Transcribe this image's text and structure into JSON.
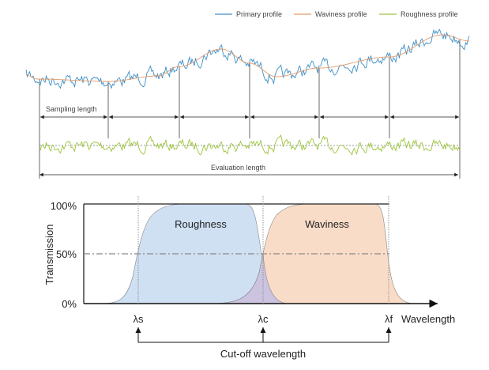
{
  "legend": [
    {
      "label": "Primary profile",
      "color": "#3d8fc6"
    },
    {
      "label": "Waviness profile",
      "color": "#e59a6b"
    },
    {
      "label": "Roughness profile",
      "color": "#9cc43c"
    }
  ],
  "profile_labels": {
    "sampling_length": "Sampling length",
    "evaluation_length": "Evaluation length"
  },
  "filter_chart": {
    "y_axis_label": "Transmission",
    "y_ticks": [
      "100%",
      "50%",
      "0%"
    ],
    "x_axis_label": "Wavelength",
    "cutoffs": [
      "λs",
      "λc",
      "λf"
    ],
    "band_labels": {
      "roughness": "Roughness",
      "waviness": "Waviness"
    },
    "cutoff_label": "Cut-off wavelength",
    "colors": {
      "roughness_fill": "#cfe0f3",
      "waviness_fill": "#f9dcc8",
      "overlap_fill": "#cbc3e0"
    }
  }
}
